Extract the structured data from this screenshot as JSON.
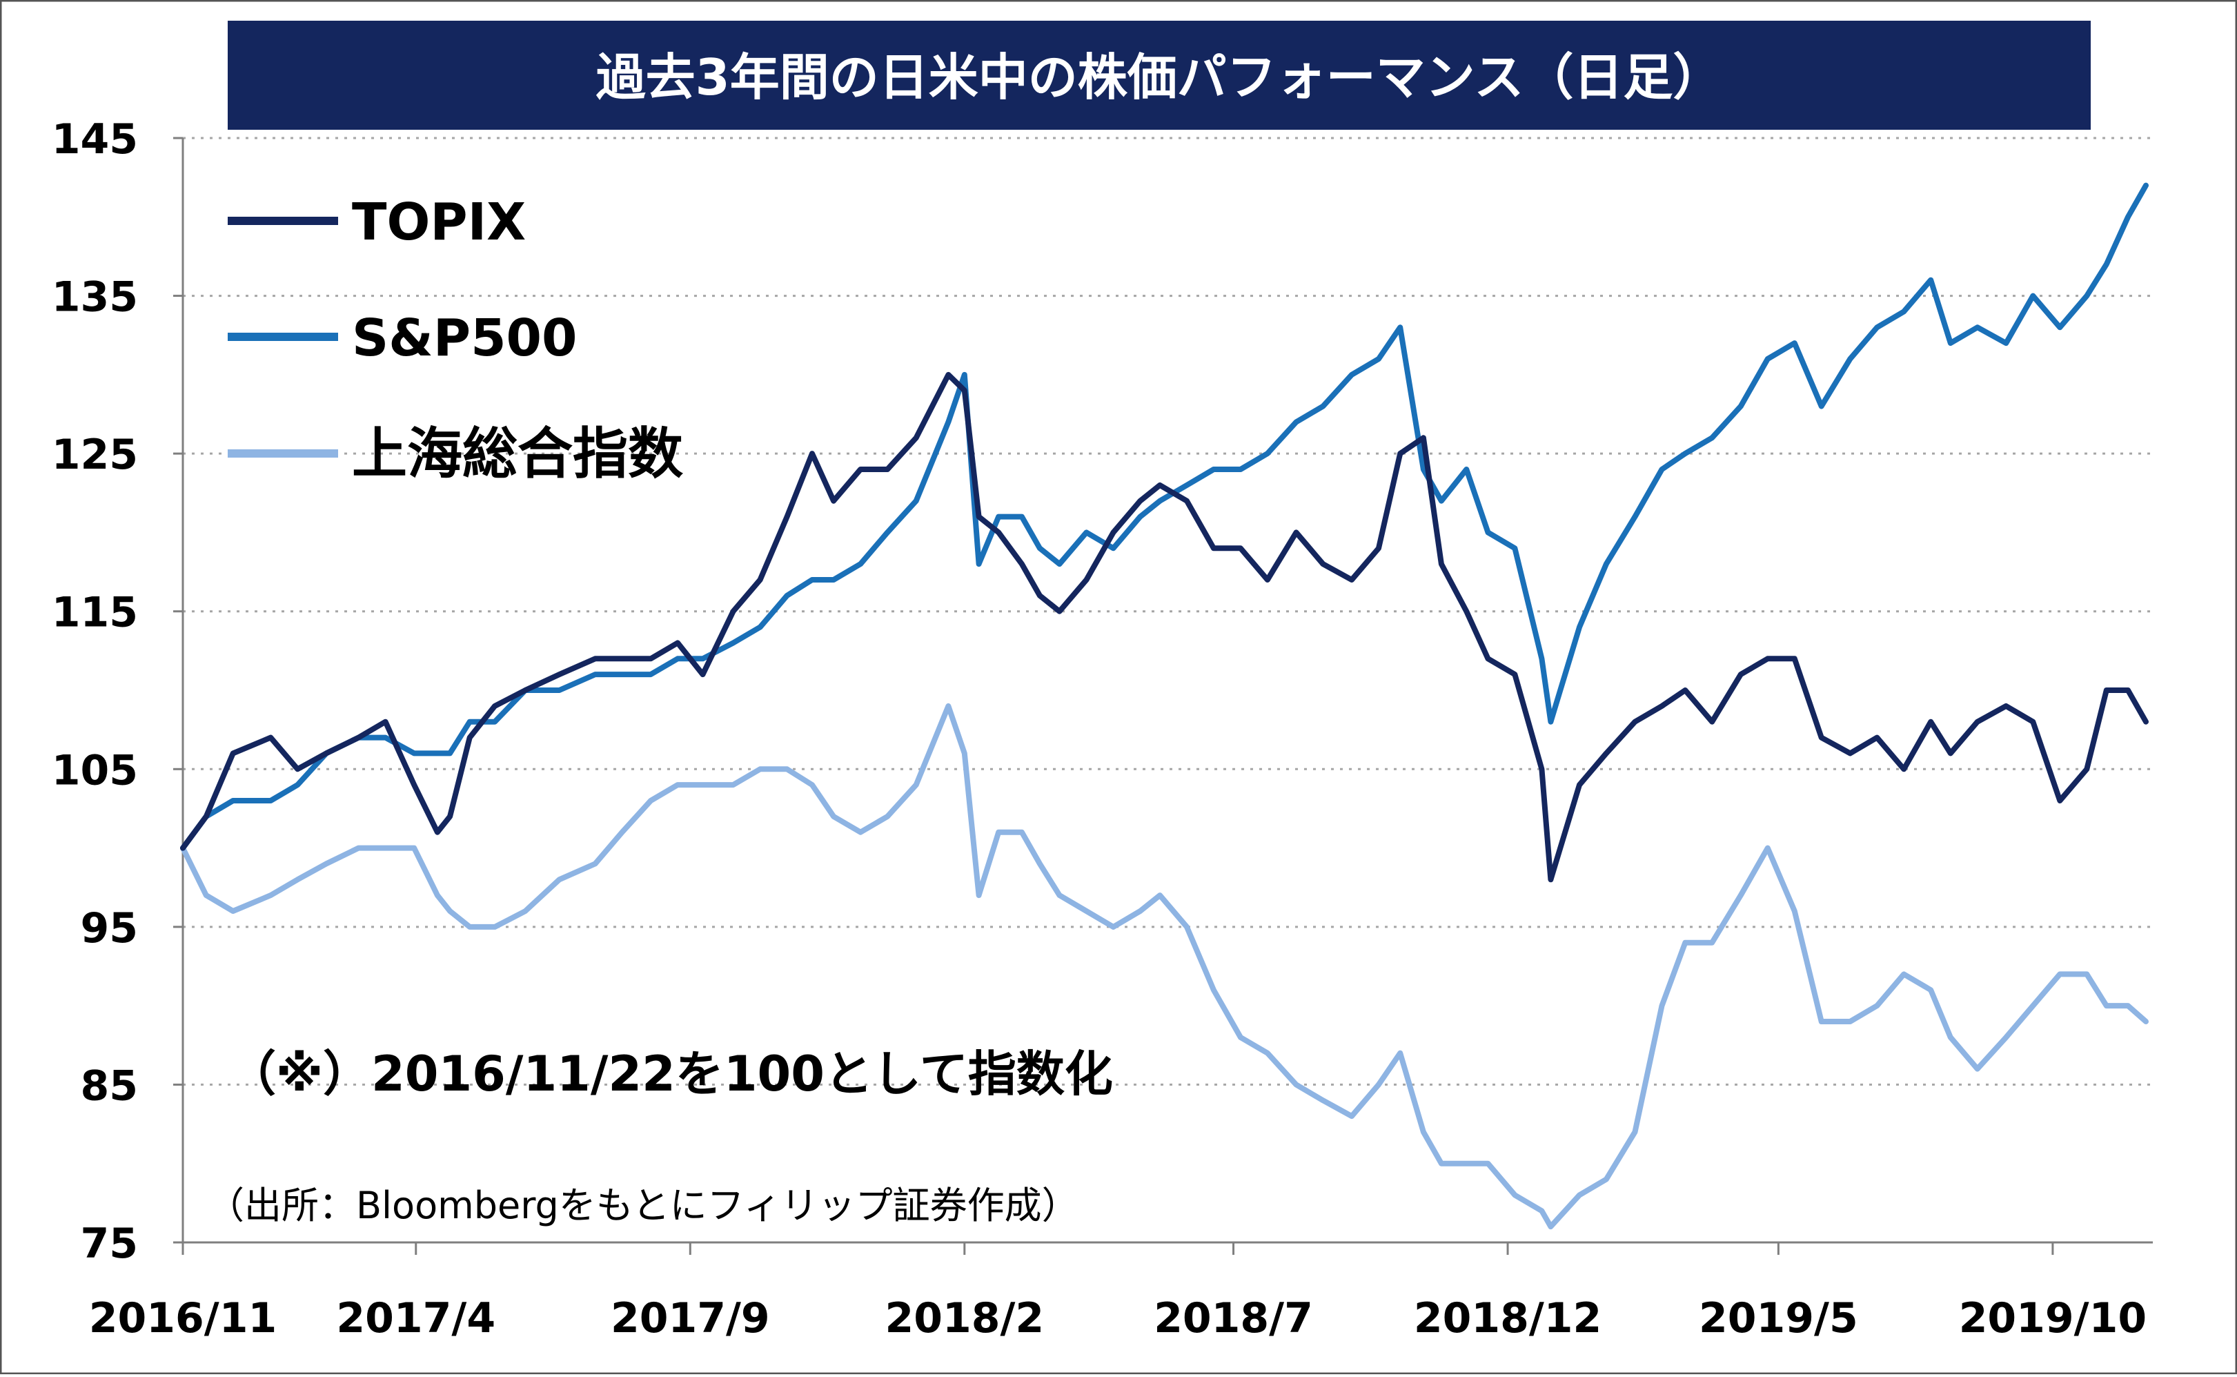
{
  "chart_data": {
    "type": "line",
    "title": "過去3年間の日米中の株価パフォーマンス（日足）",
    "xlabel": "",
    "ylabel": "",
    "ylim": [
      75,
      145
    ],
    "y_ticks": [
      "145",
      "135",
      "125",
      "115",
      "105",
      "95",
      "85",
      "75"
    ],
    "x_ticks": [
      "2016/11",
      "2017/4",
      "2017/9",
      "2018/2",
      "2018/7",
      "2018/12",
      "2019/5",
      "2019/10"
    ],
    "grid": "horizontal-dotted",
    "legend_position": "top-left",
    "note": "（※）2016/11/22を100として指数化",
    "source": "（出所：Bloombergをもとにフィリップ証券作成）",
    "series": [
      {
        "name": "TOPIX",
        "color": "#14265e",
        "x": [
          "2016/11/22",
          "2016/12/05",
          "2016/12/20",
          "2017/01/10",
          "2017/01/25",
          "2017/02/10",
          "2017/02/28",
          "2017/03/15",
          "2017/03/31",
          "2017/04/13",
          "2017/04/20",
          "2017/05/01",
          "2017/05/15",
          "2017/06/01",
          "2017/06/20",
          "2017/07/10",
          "2017/07/25",
          "2017/08/10",
          "2017/08/25",
          "2017/09/08",
          "2017/09/25",
          "2017/10/10",
          "2017/10/25",
          "2017/11/08",
          "2017/11/20",
          "2017/12/05",
          "2017/12/20",
          "2018/01/05",
          "2018/01/23",
          "2018/02/01",
          "2018/02/09",
          "2018/02/20",
          "2018/03/05",
          "2018/03/15",
          "2018/03/26",
          "2018/04/10",
          "2018/04/25",
          "2018/05/10",
          "2018/05/21",
          "2018/06/05",
          "2018/06/20",
          "2018/07/05",
          "2018/07/20",
          "2018/08/05",
          "2018/08/20",
          "2018/09/05",
          "2018/09/20",
          "2018/10/02",
          "2018/10/15",
          "2018/10/25",
          "2018/11/08",
          "2018/11/20",
          "2018/12/05",
          "2018/12/20",
          "2018/12/25",
          "2019/01/10",
          "2019/01/25",
          "2019/02/10",
          "2019/02/25",
          "2019/03/10",
          "2019/03/25",
          "2019/04/10",
          "2019/04/25",
          "2019/05/10",
          "2019/05/25",
          "2019/06/10",
          "2019/06/25",
          "2019/07/10",
          "2019/07/25",
          "2019/08/05",
          "2019/08/20",
          "2019/09/05",
          "2019/09/20",
          "2019/10/05",
          "2019/10/20",
          "2019/10/31",
          "2019/11/12",
          "2019/11/22"
        ],
        "y": [
          100,
          102,
          106,
          107,
          105,
          106,
          107,
          108,
          104,
          101,
          102,
          107,
          109,
          110,
          111,
          112,
          112,
          112,
          113,
          111,
          115,
          117,
          121,
          125,
          122,
          124,
          124,
          126,
          130,
          129,
          121,
          120,
          118,
          116,
          115,
          117,
          120,
          122,
          123,
          122,
          119,
          119,
          117,
          120,
          118,
          117,
          119,
          125,
          126,
          118,
          115,
          112,
          111,
          105,
          98,
          104,
          106,
          108,
          109,
          110,
          108,
          111,
          112,
          112,
          107,
          106,
          107,
          105,
          108,
          106,
          108,
          109,
          108,
          103,
          105,
          110,
          110,
          108
        ]
      },
      {
        "name": "S&P500",
        "color": "#1a70b8",
        "x": [
          "2016/11/22",
          "2016/12/05",
          "2016/12/20",
          "2017/01/10",
          "2017/01/25",
          "2017/02/10",
          "2017/02/28",
          "2017/03/15",
          "2017/03/31",
          "2017/04/13",
          "2017/04/20",
          "2017/05/01",
          "2017/05/15",
          "2017/06/01",
          "2017/06/20",
          "2017/07/10",
          "2017/07/25",
          "2017/08/10",
          "2017/08/25",
          "2017/09/08",
          "2017/09/25",
          "2017/10/10",
          "2017/10/25",
          "2017/11/08",
          "2017/11/20",
          "2017/12/05",
          "2017/12/20",
          "2018/01/05",
          "2018/01/23",
          "2018/02/01",
          "2018/02/09",
          "2018/02/20",
          "2018/03/05",
          "2018/03/15",
          "2018/03/26",
          "2018/04/10",
          "2018/04/25",
          "2018/05/10",
          "2018/05/21",
          "2018/06/05",
          "2018/06/20",
          "2018/07/05",
          "2018/07/20",
          "2018/08/05",
          "2018/08/20",
          "2018/09/05",
          "2018/09/20",
          "2018/10/02",
          "2018/10/15",
          "2018/10/25",
          "2018/11/08",
          "2018/11/20",
          "2018/12/05",
          "2018/12/20",
          "2018/12/25",
          "2019/01/10",
          "2019/01/25",
          "2019/02/10",
          "2019/02/25",
          "2019/03/10",
          "2019/03/25",
          "2019/04/10",
          "2019/04/25",
          "2019/05/10",
          "2019/05/25",
          "2019/06/10",
          "2019/06/25",
          "2019/07/10",
          "2019/07/25",
          "2019/08/05",
          "2019/08/20",
          "2019/09/05",
          "2019/09/20",
          "2019/10/05",
          "2019/10/20",
          "2019/10/31",
          "2019/11/12",
          "2019/11/22"
        ],
        "y": [
          100,
          102,
          103,
          103,
          104,
          106,
          107,
          107,
          106,
          106,
          106,
          108,
          108,
          110,
          110,
          111,
          111,
          111,
          112,
          112,
          113,
          114,
          116,
          117,
          117,
          118,
          120,
          122,
          127,
          130,
          118,
          121,
          121,
          119,
          118,
          120,
          119,
          121,
          122,
          123,
          124,
          124,
          125,
          127,
          128,
          130,
          131,
          133,
          124,
          122,
          124,
          120,
          119,
          112,
          108,
          114,
          118,
          121,
          124,
          125,
          126,
          128,
          131,
          132,
          128,
          131,
          133,
          134,
          136,
          132,
          133,
          132,
          135,
          133,
          135,
          137,
          140,
          142
        ]
      },
      {
        "name": "上海総合指数",
        "color": "#8eb4e3",
        "x": [
          "2016/11/22",
          "2016/12/05",
          "2016/12/20",
          "2017/01/10",
          "2017/01/25",
          "2017/02/10",
          "2017/02/28",
          "2017/03/15",
          "2017/03/31",
          "2017/04/13",
          "2017/04/20",
          "2017/05/01",
          "2017/05/15",
          "2017/06/01",
          "2017/06/20",
          "2017/07/10",
          "2017/07/25",
          "2017/08/10",
          "2017/08/25",
          "2017/09/08",
          "2017/09/25",
          "2017/10/10",
          "2017/10/25",
          "2017/11/08",
          "2017/11/20",
          "2017/12/05",
          "2017/12/20",
          "2018/01/05",
          "2018/01/23",
          "2018/02/01",
          "2018/02/09",
          "2018/02/20",
          "2018/03/05",
          "2018/03/15",
          "2018/03/26",
          "2018/04/10",
          "2018/04/25",
          "2018/05/10",
          "2018/05/21",
          "2018/06/05",
          "2018/06/20",
          "2018/07/05",
          "2018/07/20",
          "2018/08/05",
          "2018/08/20",
          "2018/09/05",
          "2018/09/20",
          "2018/10/02",
          "2018/10/15",
          "2018/10/25",
          "2018/11/08",
          "2018/11/20",
          "2018/12/05",
          "2018/12/20",
          "2018/12/25",
          "2019/01/10",
          "2019/01/25",
          "2019/02/10",
          "2019/02/25",
          "2019/03/10",
          "2019/03/25",
          "2019/04/10",
          "2019/04/25",
          "2019/05/10",
          "2019/05/25",
          "2019/06/10",
          "2019/06/25",
          "2019/07/10",
          "2019/07/25",
          "2019/08/05",
          "2019/08/20",
          "2019/09/05",
          "2019/09/20",
          "2019/10/05",
          "2019/10/20",
          "2019/10/31",
          "2019/11/12",
          "2019/11/22"
        ],
        "y": [
          100,
          97,
          96,
          97,
          98,
          99,
          100,
          100,
          100,
          97,
          96,
          95,
          95,
          96,
          98,
          99,
          101,
          103,
          104,
          104,
          104,
          105,
          105,
          104,
          102,
          101,
          102,
          104,
          109,
          106,
          97,
          101,
          101,
          99,
          97,
          96,
          95,
          96,
          97,
          95,
          91,
          88,
          87,
          85,
          84,
          83,
          85,
          87,
          82,
          80,
          80,
          80,
          78,
          77,
          76,
          78,
          79,
          82,
          90,
          94,
          94,
          97,
          100,
          96,
          89,
          89,
          90,
          92,
          91,
          88,
          86,
          88,
          90,
          92,
          92,
          90,
          90,
          89
        ]
      }
    ]
  }
}
